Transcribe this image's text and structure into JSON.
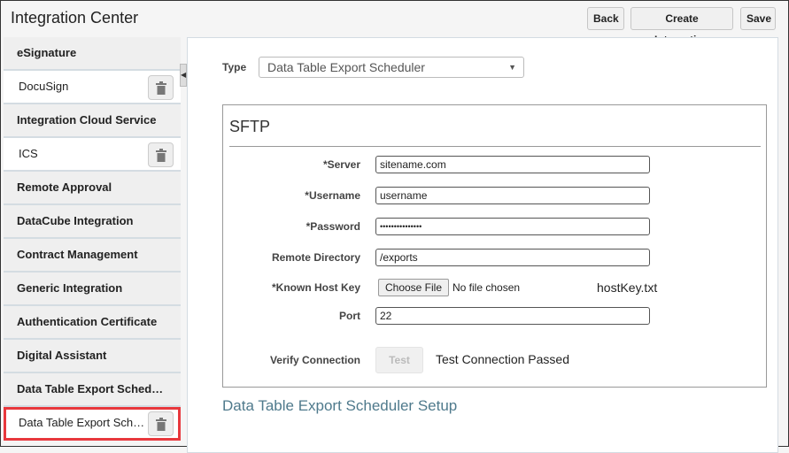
{
  "header": {
    "title": "Integration Center",
    "back": "Back",
    "create": "Create Integration",
    "save": "Save"
  },
  "sidebar": {
    "items": [
      {
        "type": "group",
        "label": "eSignature"
      },
      {
        "type": "item",
        "label": "DocuSign"
      },
      {
        "type": "group",
        "label": "Integration Cloud Service"
      },
      {
        "type": "item",
        "label": "ICS"
      },
      {
        "type": "group",
        "label": "Remote Approval"
      },
      {
        "type": "group",
        "label": "DataCube Integration"
      },
      {
        "type": "group",
        "label": "Contract Management"
      },
      {
        "type": "group",
        "label": "Generic Integration"
      },
      {
        "type": "group",
        "label": "Authentication Certificate"
      },
      {
        "type": "group",
        "label": "Digital Assistant"
      },
      {
        "type": "group",
        "label": "Data Table Export Sched…"
      },
      {
        "type": "item",
        "label": "Data Table Export Sch…",
        "selected": true
      }
    ]
  },
  "form": {
    "type_label": "Type",
    "type_value": "Data Table Export Scheduler",
    "section": "SFTP",
    "server_label": "*Server",
    "server": "sitename.com",
    "username_label": "*Username",
    "username": "username",
    "password_label": "*Password",
    "password": "•••••••••••••••",
    "remote_label": "Remote Directory",
    "remote": "/exports",
    "hostkey_label": "*Known Host Key",
    "choose_file": "Choose File",
    "no_file": "No file chosen",
    "hostkey_file": "hostKey.txt",
    "port_label": "Port",
    "port": "22",
    "verify_label": "Verify Connection",
    "test": "Test",
    "test_status": "Test Connection Passed",
    "setup_title": "Data Table Export Scheduler Setup"
  }
}
